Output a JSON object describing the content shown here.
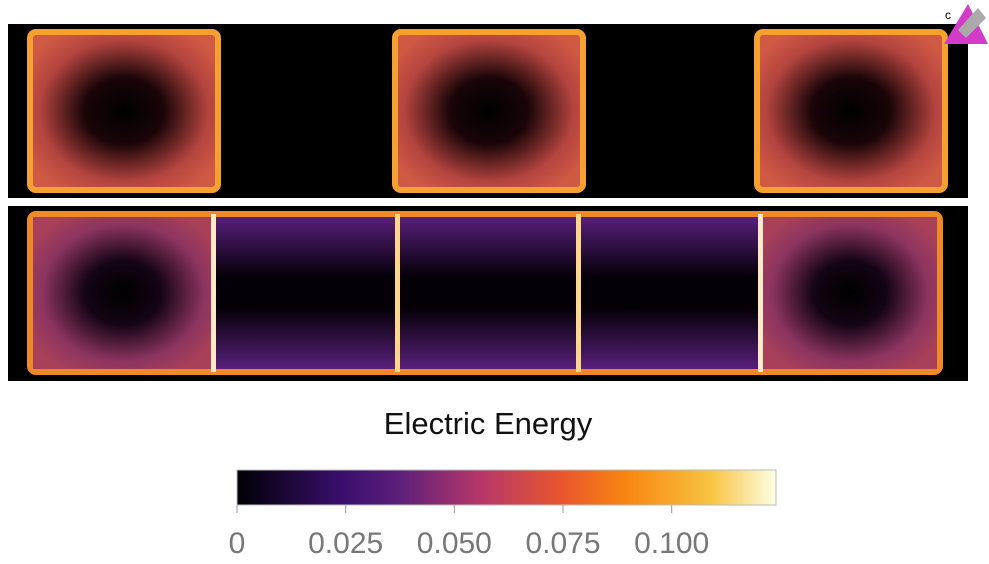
{
  "colorbar": {
    "title": "Electric Energy",
    "lim": [
      0,
      0.124
    ],
    "ticks": [
      0,
      0.025,
      {
        "value": 0.05,
        "label": "0.050"
      },
      0.075,
      {
        "value": 0.1,
        "label": "0.100"
      }
    ]
  }
}
